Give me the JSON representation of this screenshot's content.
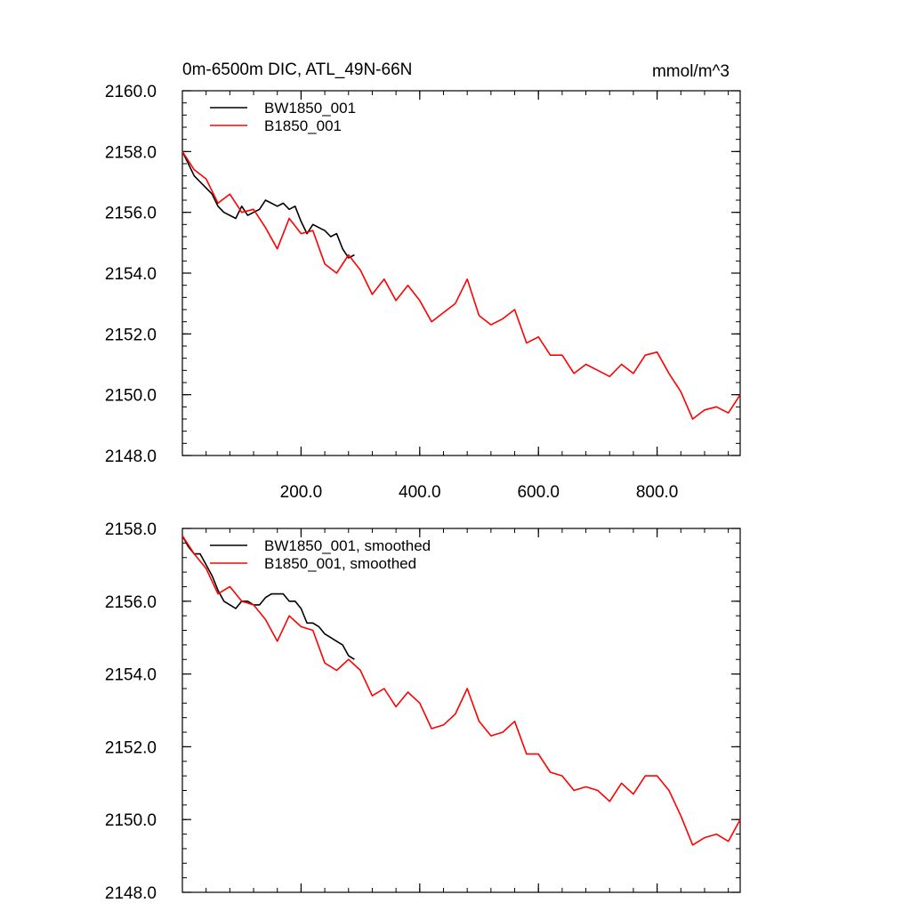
{
  "chart_data": [
    {
      "type": "line",
      "title": "0m-6500m DIC, ATL_49N-66N",
      "units": "mmol/m^3",
      "xlim": [
        0,
        940
      ],
      "ylim": [
        2148.0,
        2160.0
      ],
      "yticks": [
        2148.0,
        2150.0,
        2152.0,
        2154.0,
        2156.0,
        2158.0,
        2160.0
      ],
      "ytick_labels": [
        "2148.0",
        "2150.0",
        "2152.0",
        "2154.0",
        "2156.0",
        "2158.0",
        "2160.0"
      ],
      "xticks": [
        200,
        400,
        600,
        800
      ],
      "xtick_labels": [
        "200.0",
        "400.0",
        "600.0",
        "800.0"
      ],
      "legend": "top-left",
      "series": [
        {
          "name": "BW1850_001",
          "color": "#000000",
          "x": [
            0,
            10,
            20,
            30,
            40,
            50,
            60,
            70,
            80,
            90,
            100,
            110,
            120,
            130,
            140,
            150,
            160,
            170,
            180,
            190,
            200,
            210,
            220,
            230,
            240,
            250,
            260,
            270,
            280,
            290
          ],
          "y": [
            2158.0,
            2157.6,
            2157.2,
            2157.0,
            2156.8,
            2156.6,
            2156.2,
            2156.0,
            2155.9,
            2155.8,
            2156.2,
            2155.9,
            2156.0,
            2156.1,
            2156.4,
            2156.3,
            2156.2,
            2156.3,
            2156.1,
            2156.2,
            2155.7,
            2155.3,
            2155.6,
            2155.5,
            2155.4,
            2155.2,
            2155.3,
            2154.8,
            2154.5,
            2154.6
          ]
        },
        {
          "name": "B1850_001",
          "color": "#ff0000",
          "x": [
            0,
            20,
            40,
            60,
            80,
            100,
            120,
            140,
            160,
            180,
            200,
            220,
            240,
            260,
            280,
            300,
            320,
            340,
            360,
            380,
            400,
            420,
            440,
            460,
            480,
            500,
            520,
            540,
            560,
            580,
            600,
            620,
            640,
            660,
            680,
            700,
            720,
            740,
            760,
            780,
            800,
            820,
            840,
            860,
            880,
            900,
            920,
            940
          ],
          "y": [
            2158.0,
            2157.4,
            2157.1,
            2156.3,
            2156.6,
            2156.0,
            2156.1,
            2155.5,
            2154.8,
            2155.8,
            2155.3,
            2155.4,
            2154.3,
            2154.0,
            2154.6,
            2154.1,
            2153.3,
            2153.8,
            2153.1,
            2153.6,
            2153.1,
            2152.4,
            2152.7,
            2153.0,
            2153.8,
            2152.6,
            2152.3,
            2152.5,
            2152.8,
            2151.7,
            2151.9,
            2151.3,
            2151.3,
            2150.7,
            2151.0,
            2150.8,
            2150.6,
            2151.0,
            2150.7,
            2151.3,
            2151.4,
            2150.7,
            2150.1,
            2149.2,
            2149.5,
            2149.6,
            2149.4,
            2150.0
          ]
        }
      ]
    },
    {
      "type": "line",
      "xlim": [
        0,
        940
      ],
      "ylim": [
        2148.0,
        2158.0
      ],
      "yticks": [
        2148.0,
        2150.0,
        2152.0,
        2154.0,
        2156.0,
        2158.0
      ],
      "ytick_labels": [
        "2148.0",
        "2150.0",
        "2152.0",
        "2154.0",
        "2156.0",
        "2158.0"
      ],
      "xticks": [
        200,
        400,
        600,
        800
      ],
      "legend": "top-left",
      "series": [
        {
          "name": "BW1850_001, smoothed",
          "color": "#000000",
          "x": [
            0,
            10,
            20,
            30,
            40,
            50,
            60,
            70,
            80,
            90,
            100,
            110,
            120,
            130,
            140,
            150,
            160,
            170,
            180,
            190,
            200,
            210,
            220,
            230,
            240,
            250,
            260,
            270,
            280,
            290
          ],
          "y": [
            2157.8,
            2157.5,
            2157.3,
            2157.3,
            2157.0,
            2156.7,
            2156.3,
            2156.0,
            2155.9,
            2155.8,
            2156.0,
            2156.0,
            2155.9,
            2155.9,
            2156.1,
            2156.2,
            2156.2,
            2156.2,
            2156.0,
            2156.0,
            2155.8,
            2155.4,
            2155.4,
            2155.3,
            2155.1,
            2155.0,
            2154.9,
            2154.8,
            2154.5,
            2154.4
          ]
        },
        {
          "name": "B1850_001, smoothed",
          "color": "#ff0000",
          "x": [
            0,
            20,
            40,
            60,
            80,
            100,
            120,
            140,
            160,
            180,
            200,
            220,
            240,
            260,
            280,
            300,
            320,
            340,
            360,
            380,
            400,
            420,
            440,
            460,
            480,
            500,
            520,
            540,
            560,
            580,
            600,
            620,
            640,
            660,
            680,
            700,
            720,
            740,
            760,
            780,
            800,
            820,
            840,
            860,
            880,
            900,
            920,
            940
          ],
          "y": [
            2157.8,
            2157.3,
            2156.9,
            2156.2,
            2156.4,
            2156.0,
            2155.9,
            2155.5,
            2154.9,
            2155.6,
            2155.3,
            2155.2,
            2154.3,
            2154.1,
            2154.4,
            2154.1,
            2153.4,
            2153.6,
            2153.1,
            2153.5,
            2153.2,
            2152.5,
            2152.6,
            2152.9,
            2153.6,
            2152.7,
            2152.3,
            2152.4,
            2152.7,
            2151.8,
            2151.8,
            2151.3,
            2151.2,
            2150.8,
            2150.9,
            2150.8,
            2150.5,
            2151.0,
            2150.7,
            2151.2,
            2151.2,
            2150.8,
            2150.1,
            2149.3,
            2149.5,
            2149.6,
            2149.4,
            2150.0
          ]
        }
      ]
    }
  ]
}
